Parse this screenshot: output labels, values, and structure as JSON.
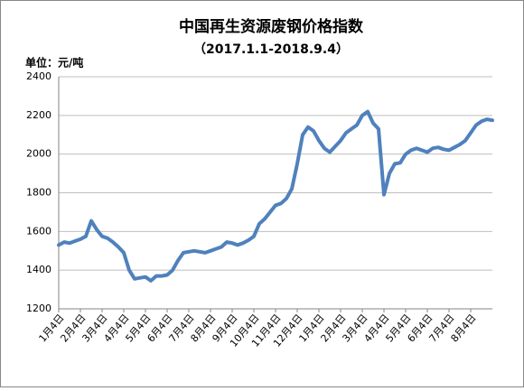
{
  "chart_data": {
    "type": "line",
    "title": "中国再生资源废钢价格指数",
    "subtitle": "（2017.1.1-2018.9.4）",
    "y_label": "单位：元/吨",
    "categories": [
      "1月4日",
      null,
      null,
      null,
      "2月4日",
      null,
      null,
      null,
      "3月4日",
      null,
      null,
      null,
      "4月4日",
      null,
      null,
      null,
      "5月4日",
      null,
      null,
      null,
      "6月4日",
      null,
      null,
      null,
      "7月4日",
      null,
      null,
      null,
      "8月4日",
      null,
      null,
      null,
      "9月4日",
      null,
      null,
      null,
      "10月4日",
      null,
      null,
      null,
      "11月4日",
      null,
      null,
      null,
      "12月4日",
      null,
      null,
      null,
      "1月4日",
      null,
      null,
      null,
      "2月4日",
      null,
      null,
      null,
      "3月4日",
      null,
      null,
      null,
      "4月4日",
      null,
      null,
      null,
      "5月4日",
      null,
      null,
      null,
      "6月4日",
      null,
      null,
      null,
      "7月4日",
      null,
      null,
      null,
      "8月4日",
      null,
      null,
      null,
      null
    ],
    "series": [
      {
        "color": "#4f81bd",
        "values": [
          1530,
          1545,
          1540,
          1550,
          1560,
          1575,
          1655,
          1610,
          1575,
          1565,
          1545,
          1520,
          1490,
          1400,
          1355,
          1360,
          1365,
          1345,
          1370,
          1370,
          1375,
          1400,
          1450,
          1490,
          1495,
          1500,
          1495,
          1490,
          1500,
          1510,
          1520,
          1545,
          1540,
          1530,
          1540,
          1555,
          1575,
          1640,
          1665,
          1700,
          1735,
          1745,
          1770,
          1820,
          1950,
          2100,
          2140,
          2120,
          2070,
          2030,
          2010,
          2040,
          2070,
          2110,
          2130,
          2150,
          2200,
          2220,
          2160,
          2130,
          1790,
          1900,
          1950,
          1955,
          2000,
          2020,
          2030,
          2020,
          2010,
          2030,
          2035,
          2025,
          2020,
          2035,
          2050,
          2070,
          2110,
          2150,
          2170,
          2180,
          2175
        ]
      }
    ],
    "ylim": [
      1200,
      2400
    ],
    "yticks": [
      1200,
      1400,
      1600,
      1800,
      2000,
      2200,
      2400
    ],
    "grid": true
  }
}
